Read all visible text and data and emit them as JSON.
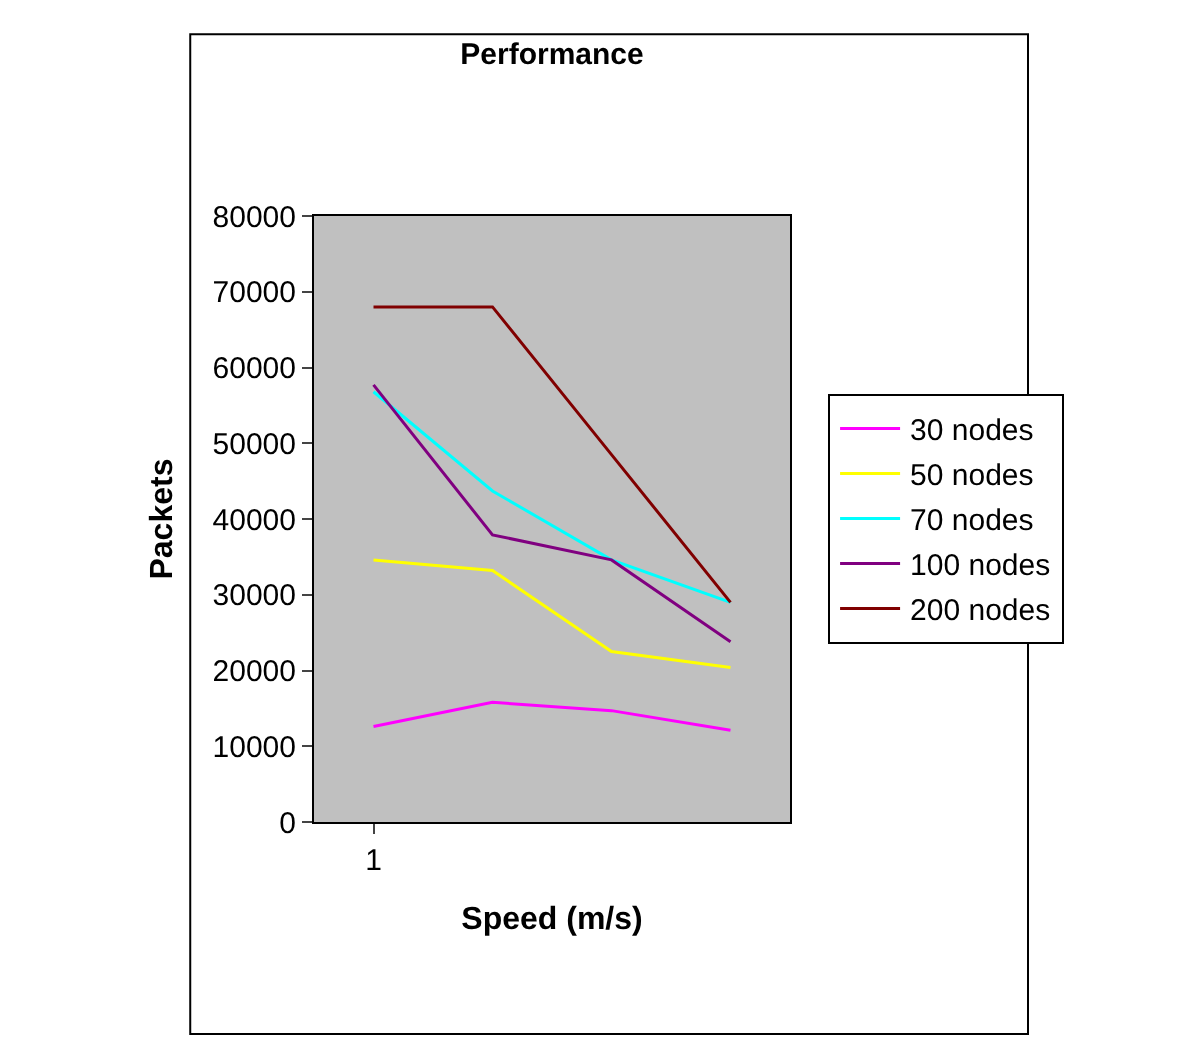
{
  "chart_data": {
    "type": "line",
    "title": "Performance",
    "xlabel": "Speed (m/s)",
    "ylabel": "Packets",
    "categories": [
      "1",
      null,
      null,
      null
    ],
    "ylim": [
      0,
      80000
    ],
    "yticks": [
      0,
      10000,
      20000,
      30000,
      40000,
      50000,
      60000,
      70000,
      80000
    ],
    "grid": false,
    "legend": "right",
    "marker": "none",
    "line_style": "solid",
    "series": [
      {
        "name": "30 nodes",
        "color": "#ff00ff",
        "values": [
          12600,
          15800,
          14700,
          12100
        ]
      },
      {
        "name": "50 nodes",
        "color": "#ffff00",
        "values": [
          34600,
          33200,
          22500,
          20400
        ]
      },
      {
        "name": "70 nodes",
        "color": "#00ffff",
        "values": [
          56800,
          43700,
          34600,
          29000
        ]
      },
      {
        "name": "100 nodes",
        "color": "#800080",
        "values": [
          57700,
          37900,
          34600,
          23800
        ]
      },
      {
        "name": "200 nodes",
        "color": "#800000",
        "values": [
          68000,
          68000,
          48500,
          29000
        ]
      }
    ]
  }
}
